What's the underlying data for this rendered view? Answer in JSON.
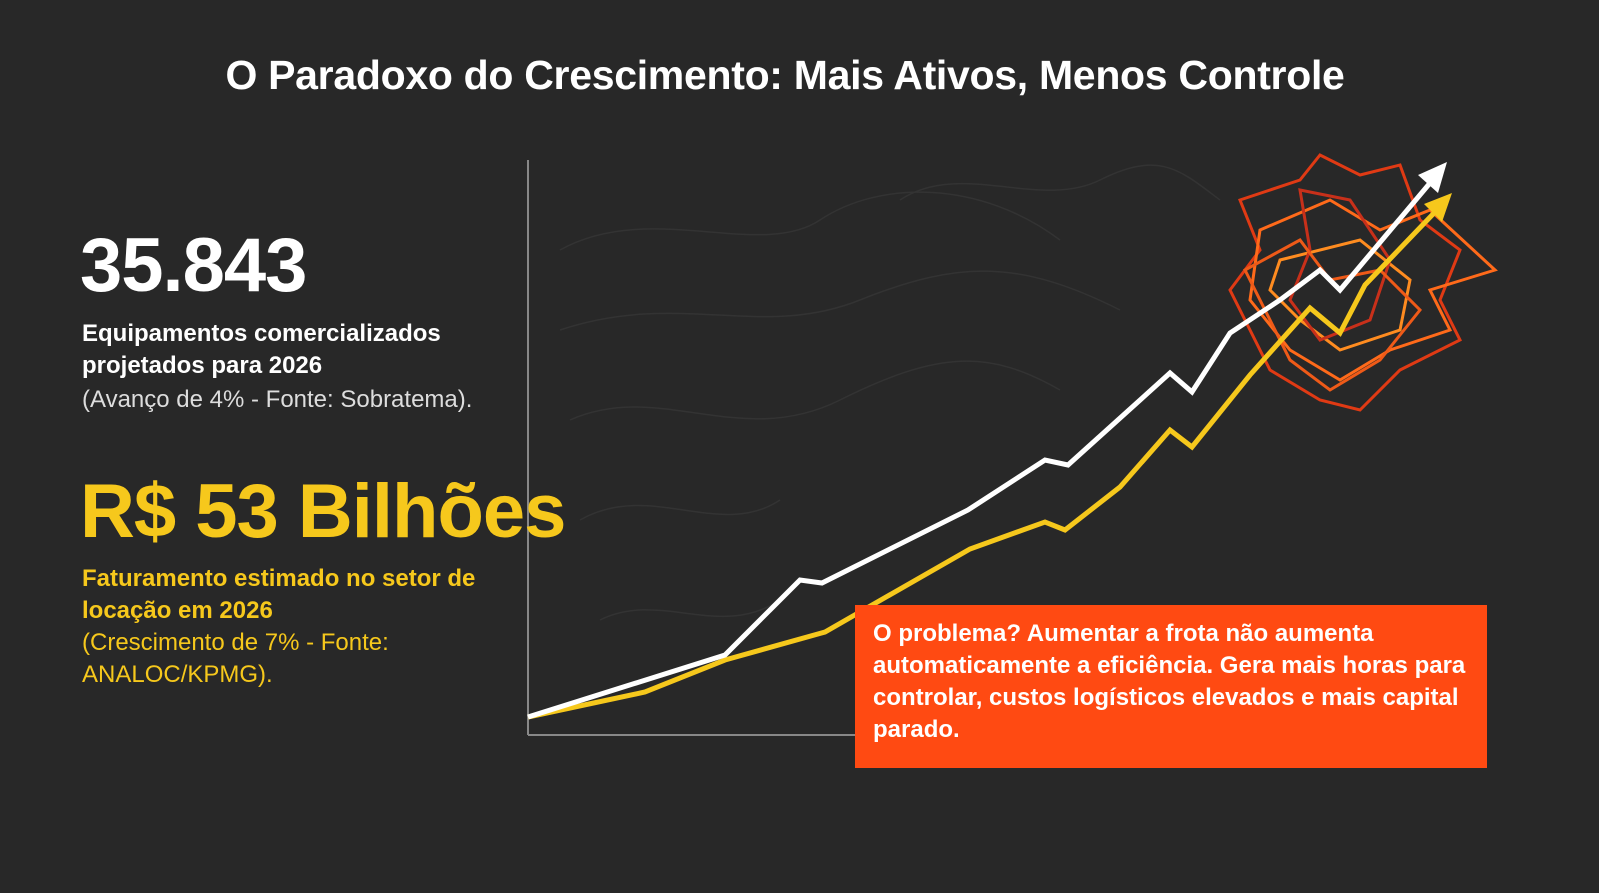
{
  "header": {
    "title": "O Paradoxo do Crescimento: Mais Ativos, Menos Controle"
  },
  "stats": [
    {
      "value": "35.843",
      "label": "Equipamentos comercializados projetados para 2026",
      "note": "(Avanço de 4% - Fonte: Sobratema)."
    },
    {
      "value": "R$ 53 Bilhões",
      "label": "Faturamento estimado no setor de locação em 2026",
      "note": "(Crescimento de 7% - Fonte: ANALOC/KPMG)."
    }
  ],
  "callout": {
    "text": "O problema? Aumentar a frota não aumenta automaticamente a eficiência. Gera mais horas para controlar, custos logísticos elevados e mais capital parado."
  }
}
